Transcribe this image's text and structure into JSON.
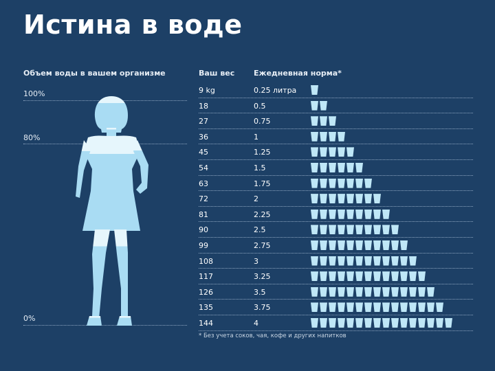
{
  "title": "Истина в воде",
  "left_panel": {
    "header": "Объем воды в вашем организме",
    "levels": [
      "100%",
      "80%",
      "0%"
    ]
  },
  "table": {
    "weight_header": "Ваш вес",
    "norm_header": "Ежедневная норма*",
    "rows": [
      {
        "weight": "9 kg",
        "liters": "0.25 литра",
        "glasses": 1
      },
      {
        "weight": "18",
        "liters": "0.5",
        "glasses": 2
      },
      {
        "weight": "27",
        "liters": "0.75",
        "glasses": 3
      },
      {
        "weight": "36",
        "liters": "1",
        "glasses": 4
      },
      {
        "weight": "45",
        "liters": "1.25",
        "glasses": 5
      },
      {
        "weight": "54",
        "liters": "1.5",
        "glasses": 6
      },
      {
        "weight": "63",
        "liters": "1.75",
        "glasses": 7
      },
      {
        "weight": "72",
        "liters": "2",
        "glasses": 8
      },
      {
        "weight": "81",
        "liters": "2.25",
        "glasses": 9
      },
      {
        "weight": "90",
        "liters": "2.5",
        "glasses": 10
      },
      {
        "weight": "99",
        "liters": "2.75",
        "glasses": 11
      },
      {
        "weight": "108",
        "liters": "3",
        "glasses": 12
      },
      {
        "weight": "117",
        "liters": "3.25",
        "glasses": 13
      },
      {
        "weight": "126",
        "liters": "3.5",
        "glasses": 14
      },
      {
        "weight": "135",
        "liters": "3.75",
        "glasses": 15
      },
      {
        "weight": "144",
        "liters": "4",
        "glasses": 16
      }
    ]
  },
  "footnote": "* Без учета соков, чая, кофе и других напитков",
  "colors": {
    "background": "#1d4066",
    "water": "#bfe7f7",
    "water_light": "#e6f6fc"
  },
  "icons": [
    "woman-silhouette-icon",
    "water-glass-icon"
  ]
}
